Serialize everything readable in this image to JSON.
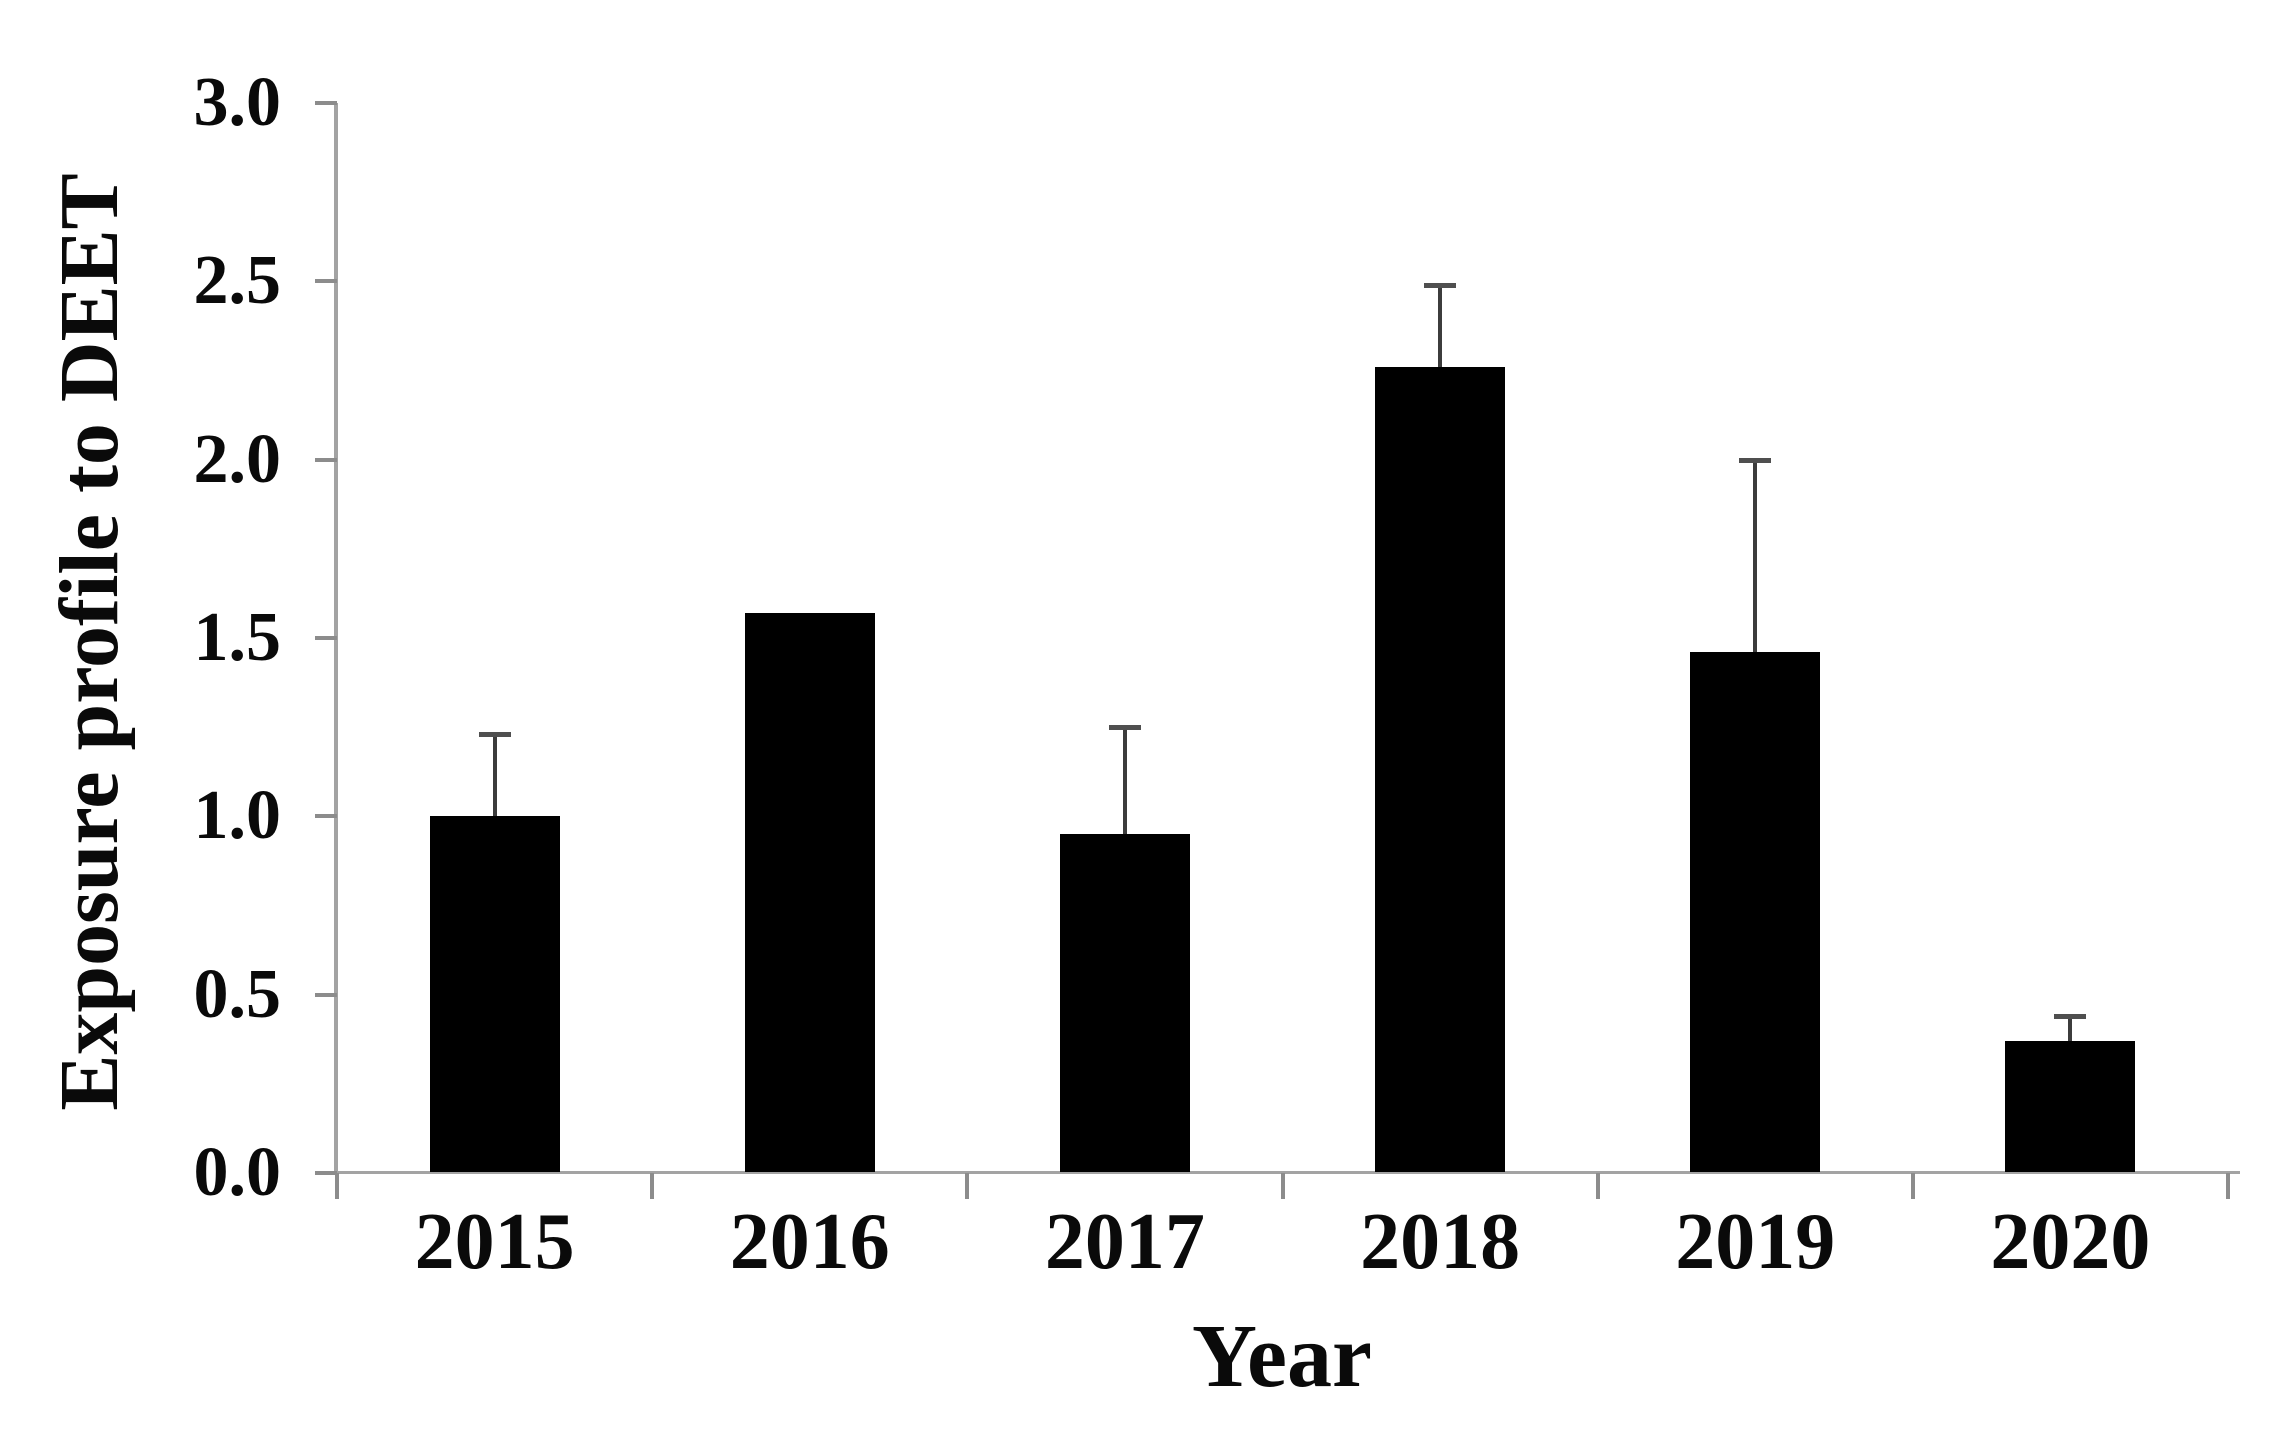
{
  "figure": {
    "background": "#ffffff",
    "bar_color": "#000000",
    "axis_color": "#a3a3a3",
    "tick_color": "#8c8c8c",
    "error_bar_color": "#3c3c3c",
    "text_color": "#0a0a0a"
  },
  "chart_data": {
    "type": "bar",
    "title": "",
    "xlabel": "Year",
    "ylabel": "Exposure profile to DEET",
    "categories": [
      "2015",
      "2016",
      "2017",
      "2018",
      "2019",
      "2020"
    ],
    "values": [
      1.0,
      1.57,
      0.95,
      2.26,
      1.46,
      0.37
    ],
    "errors_upper": [
      0.23,
      0,
      0.3,
      0.23,
      0.54,
      0.07
    ],
    "ylim": [
      0.0,
      3.0
    ],
    "yticks": [
      0.0,
      0.5,
      1.0,
      1.5,
      2.0,
      2.5,
      3.0
    ],
    "ytick_labels": [
      "0.0",
      "0.5",
      "1.0",
      "1.5",
      "2.0",
      "2.5",
      "3.0"
    ],
    "grid": false,
    "legend": false,
    "error_bars": "upper-only"
  }
}
